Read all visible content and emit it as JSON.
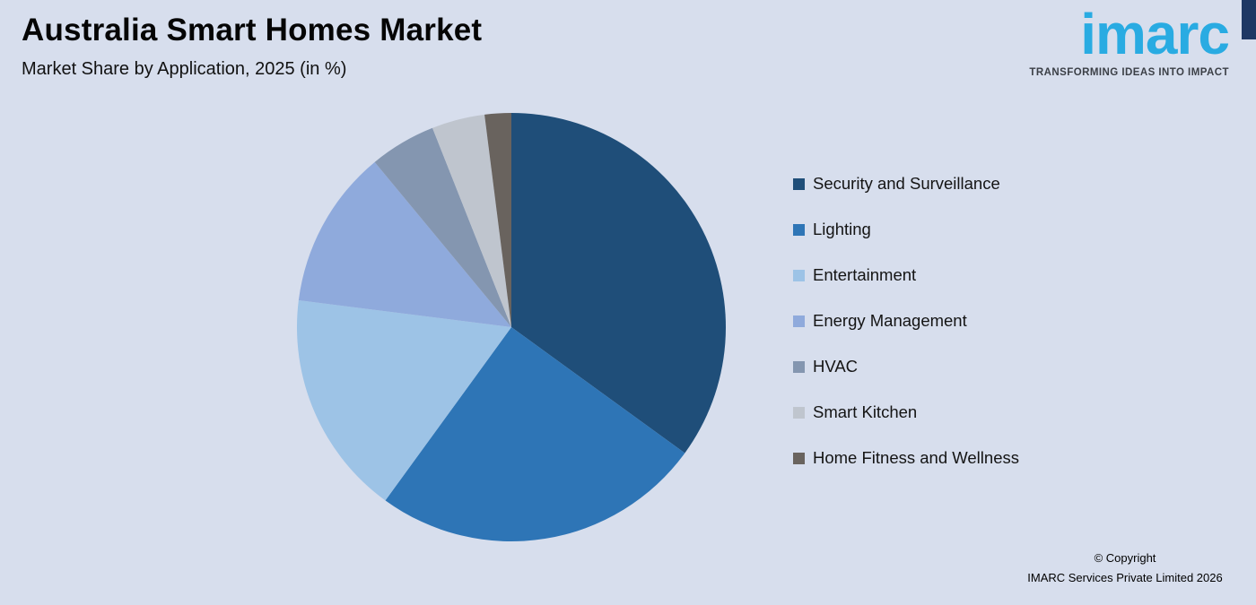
{
  "header": {
    "title": "Australia Smart Homes Market",
    "subtitle": "Market Share by Application, 2025 (in %)"
  },
  "logo": {
    "wordmark": "imarc",
    "tagline": "TRANSFORMING IDEAS INTO IMPACT",
    "brand_color": "#29abe2",
    "accent_color": "#1f3864"
  },
  "footer": {
    "line1": "© Copyright",
    "line2": "IMARC Services Private Limited 2026"
  },
  "chart_data": {
    "type": "pie",
    "title": "Australia Smart Homes Market",
    "subtitle": "Market Share by Application, 2025 (in %)",
    "start_angle_deg": 0,
    "direction": "clockwise",
    "legend_position": "right",
    "value_unit": "%",
    "segments": [
      {
        "label": "Security and Surveillance",
        "value": 35,
        "color": "#1f4e79"
      },
      {
        "label": "Lighting",
        "value": 25,
        "color": "#2e75b6"
      },
      {
        "label": "Entertainment",
        "value": 17,
        "color": "#9dc3e6"
      },
      {
        "label": "Energy Management",
        "value": 12,
        "color": "#8faadc"
      },
      {
        "label": "HVAC",
        "value": 5,
        "color": "#8496b0"
      },
      {
        "label": "Smart Kitchen",
        "value": 4,
        "color": "#bfc5ce"
      },
      {
        "label": "Home Fitness and Wellness",
        "value": 2,
        "color": "#69635e"
      }
    ]
  }
}
